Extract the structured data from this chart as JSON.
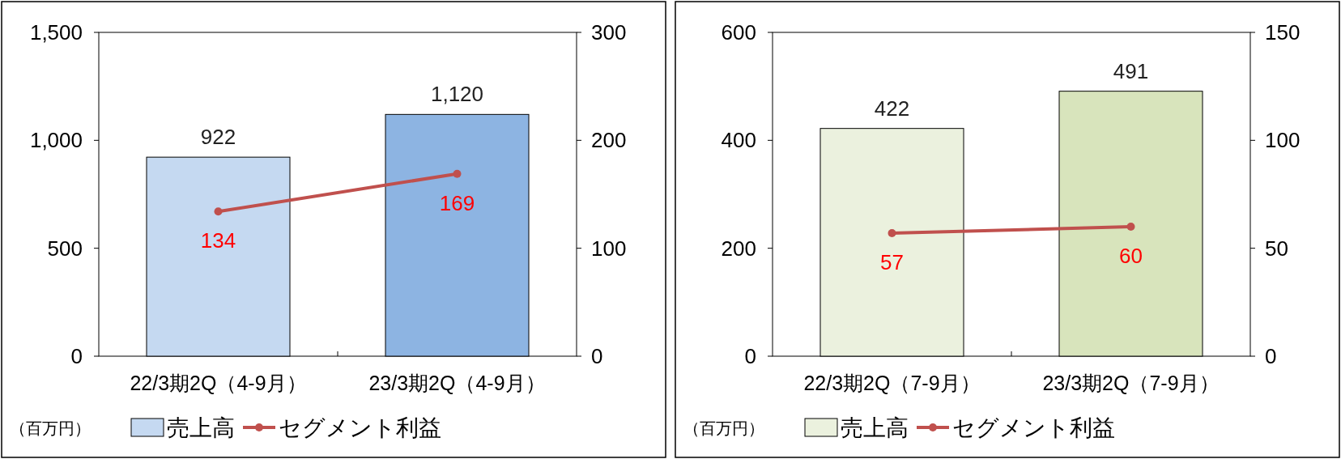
{
  "chart_data": [
    {
      "type": "bar",
      "categories": [
        "22/3期2Q（4-9月）",
        "23/3期2Q（4-9月）"
      ],
      "series": [
        {
          "name": "売上高",
          "colors": [
            "#c5d9f1",
            "#8db4e2"
          ],
          "values": [
            922,
            1120
          ],
          "value_labels": [
            "922",
            "1,120"
          ]
        },
        {
          "name": "セグメント利益",
          "type": "line",
          "axis": "y2",
          "color": "#c0504d",
          "marker": "circle",
          "values": [
            134,
            169
          ],
          "value_labels": [
            "134",
            "169"
          ]
        }
      ],
      "ylim": [
        0,
        1500
      ],
      "yticks": [
        0,
        500,
        {
          "value": 1000,
          "label": "1,000"
        },
        {
          "value": 1500,
          "label": "1,500"
        }
      ],
      "y2lim": [
        0,
        300
      ],
      "y2ticks": [
        0,
        100,
        200,
        300
      ],
      "legend": "bottom",
      "annotations": [
        "（百万円）"
      ]
    },
    {
      "type": "bar",
      "categories": [
        "22/3期2Q（7-9月）",
        "23/3期2Q（7-9月）"
      ],
      "series": [
        {
          "name": "売上高",
          "colors": [
            "#ebf1de",
            "#d8e4bc"
          ],
          "values": [
            422,
            491
          ],
          "value_labels": [
            "422",
            "491"
          ]
        },
        {
          "name": "セグメント利益",
          "type": "line",
          "axis": "y2",
          "color": "#c0504d",
          "marker": "circle",
          "values": [
            57,
            60
          ],
          "value_labels": [
            "57",
            "60"
          ]
        }
      ],
      "ylim": [
        0,
        600
      ],
      "yticks": [
        0,
        200,
        400,
        600
      ],
      "y2lim": [
        0,
        150
      ],
      "y2ticks": [
        0,
        50,
        100,
        150
      ],
      "legend": "bottom",
      "annotations": [
        "（百万円）"
      ]
    }
  ]
}
